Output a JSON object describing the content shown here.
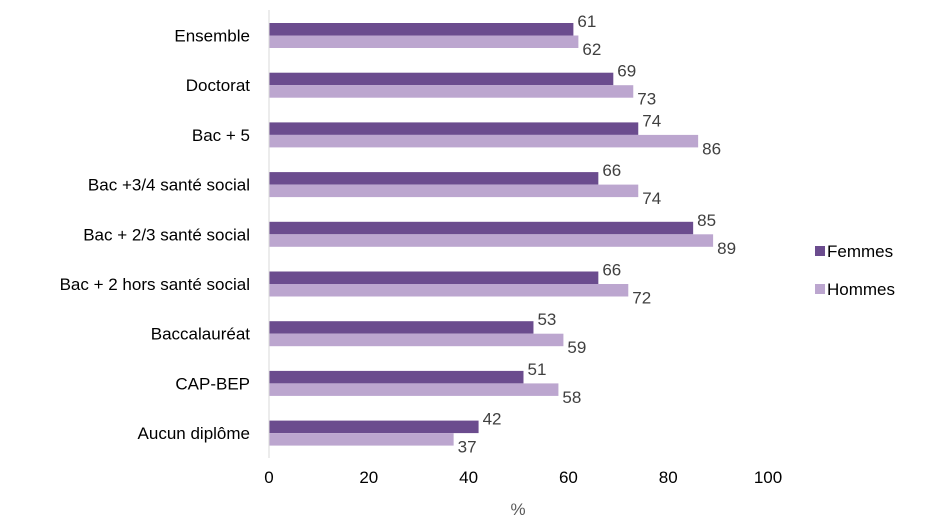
{
  "chart_data": {
    "type": "bar",
    "orientation": "horizontal",
    "categories": [
      "Ensemble",
      "Doctorat",
      "Bac + 5",
      "Bac +3/4 santé social",
      "Bac + 2/3 santé social",
      "Bac + 2 hors santé social",
      "Baccalauréat",
      "CAP-BEP",
      "Aucun diplôme"
    ],
    "series": [
      {
        "name": "Femmes",
        "color": "#6B4C8E",
        "values": [
          61,
          69,
          74,
          66,
          85,
          66,
          53,
          51,
          42
        ]
      },
      {
        "name": "Hommes",
        "color": "#BCA6CF",
        "values": [
          62,
          73,
          86,
          74,
          89,
          72,
          59,
          58,
          37
        ]
      }
    ],
    "xlabel": "%",
    "xlim": [
      0,
      100
    ],
    "xticks": [
      0,
      20,
      40,
      60,
      80,
      100
    ],
    "grid": false,
    "legend_position": "right",
    "data_labels": true
  },
  "colors": {
    "axis": "#d9d9d9",
    "text": "#000000",
    "data_label": "#404040"
  }
}
